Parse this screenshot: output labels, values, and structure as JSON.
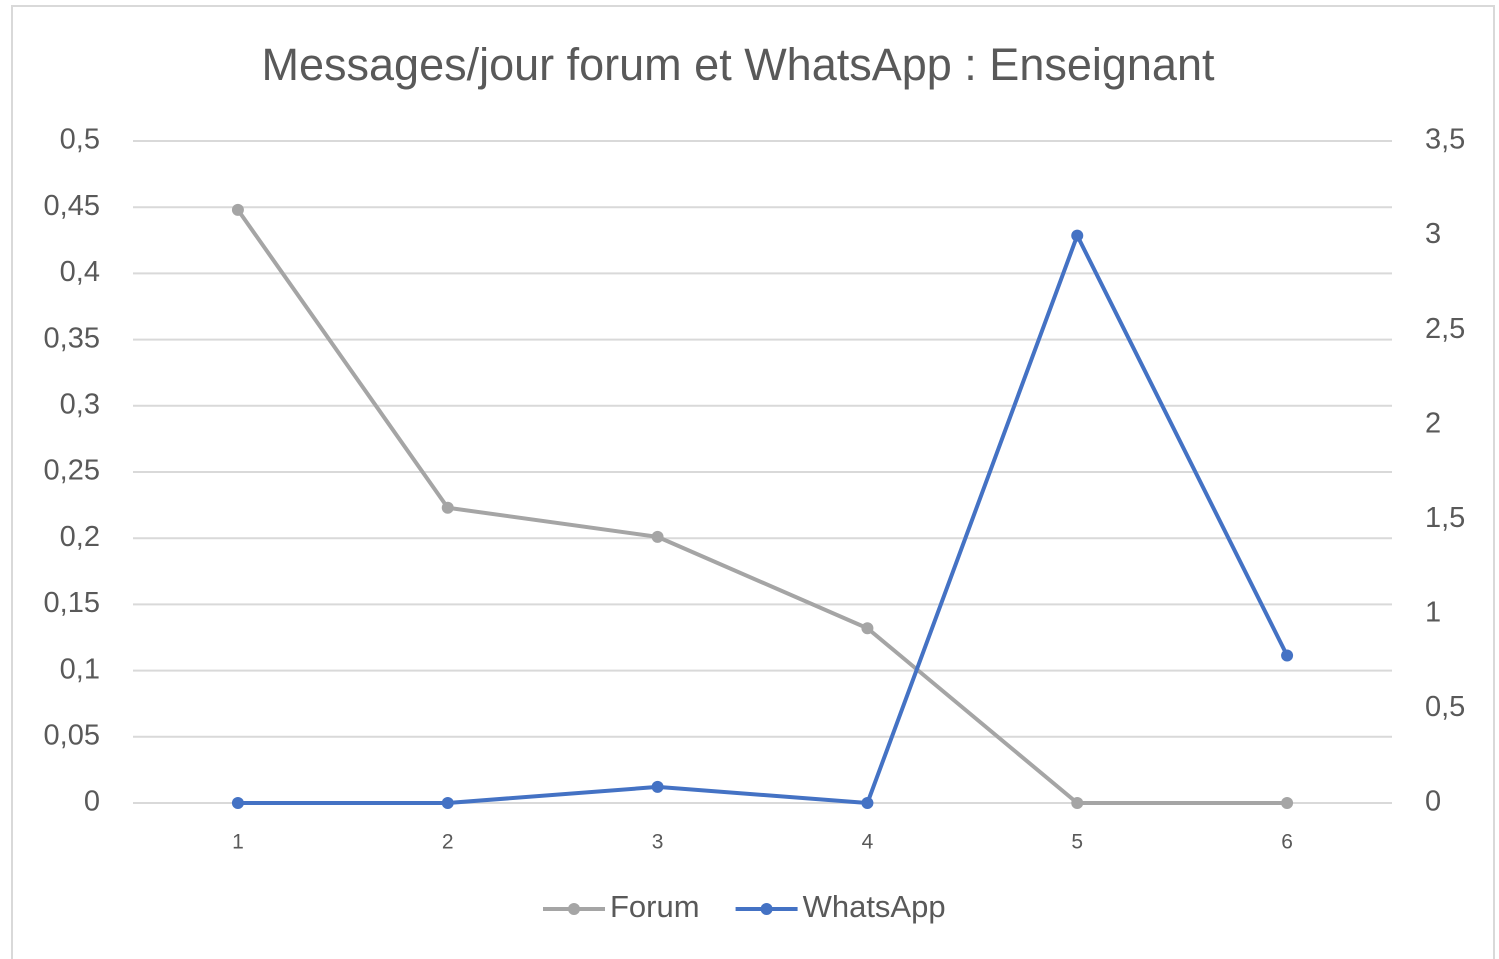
{
  "chart_data": {
    "type": "line",
    "title": "Messages/jour forum et WhatsApp : Enseignant",
    "categories": [
      "1",
      "2",
      "3",
      "4",
      "5",
      "6"
    ],
    "series": [
      {
        "name": "Forum",
        "color": "#a5a5a5",
        "values": [
          0.448,
          0.223,
          0.201,
          0.132,
          0,
          0
        ]
      },
      {
        "name": "WhatsApp",
        "color": "#4472c4",
        "axis": "y2",
        "values": [
          0,
          0,
          0.085,
          0,
          3.0,
          0.78
        ]
      }
    ],
    "ylim": [
      0,
      0.5
    ],
    "yticks": [
      0,
      {
        "value": 0.05,
        "label": "0,05"
      },
      {
        "value": 0.1,
        "label": "0,1"
      },
      {
        "value": 0.15,
        "label": "0,15"
      },
      {
        "value": 0.2,
        "label": "0,2"
      },
      {
        "value": 0.25,
        "label": "0,25"
      },
      {
        "value": 0.3,
        "label": "0,3"
      },
      {
        "value": 0.35,
        "label": "0,35"
      },
      {
        "value": 0.4,
        "label": "0,4"
      },
      {
        "value": 0.45,
        "label": "0,45"
      },
      {
        "value": 0.5,
        "label": "0,5"
      }
    ],
    "y2lim": [
      0,
      3.5
    ],
    "y2ticks": [
      0,
      {
        "value": 0.5,
        "label": "0,5"
      },
      1,
      {
        "value": 1.5,
        "label": "1,5"
      },
      2,
      {
        "value": 2.5,
        "label": "2,5"
      },
      3,
      {
        "value": 3.5,
        "label": "3,5"
      }
    ],
    "grid": true,
    "legend": "bottom"
  }
}
